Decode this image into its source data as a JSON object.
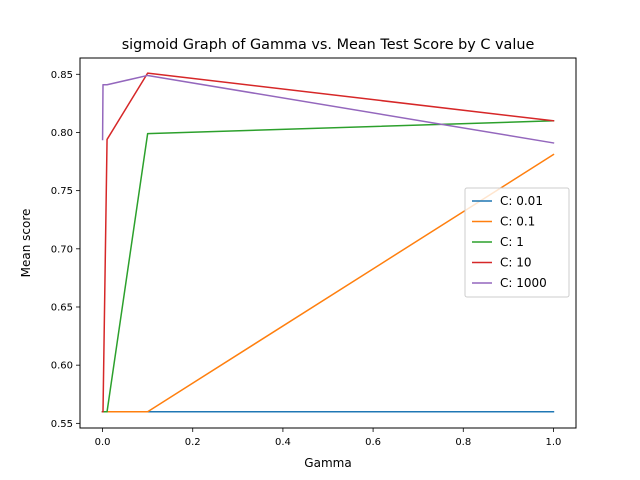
{
  "chart_data": {
    "type": "line",
    "title": "sigmoid Graph of Gamma vs. Mean Test Score by C value",
    "xlabel": "Gamma",
    "ylabel": "Mean score",
    "xlim": [
      -0.05,
      1.05
    ],
    "ylim": [
      0.546,
      0.864
    ],
    "x_ticks": [
      0.0,
      0.2,
      0.4,
      0.6,
      0.8,
      1.0
    ],
    "x_tick_labels": [
      "0.0",
      "0.2",
      "0.4",
      "0.6",
      "0.8",
      "1.0"
    ],
    "y_ticks": [
      0.55,
      0.6,
      0.65,
      0.7,
      0.75,
      0.8,
      0.85
    ],
    "y_tick_labels": [
      "0.55",
      "0.60",
      "0.65",
      "0.70",
      "0.75",
      "0.80",
      "0.85"
    ],
    "grid": false,
    "legend_position": "center-right",
    "series": [
      {
        "name": "C: 0.01",
        "color": "#1f77b4",
        "x": [
          0.0001,
          0.001,
          0.01,
          0.1,
          1.0
        ],
        "y": [
          0.56,
          0.56,
          0.56,
          0.56,
          0.56
        ]
      },
      {
        "name": "C: 0.1",
        "color": "#ff7f0e",
        "x": [
          0.0001,
          0.001,
          0.01,
          0.1,
          1.0
        ],
        "y": [
          0.56,
          0.56,
          0.56,
          0.56,
          0.781
        ]
      },
      {
        "name": "C: 1",
        "color": "#2ca02c",
        "x": [
          0.0001,
          0.001,
          0.01,
          0.1,
          1.0
        ],
        "y": [
          0.56,
          0.56,
          0.56,
          0.799,
          0.81
        ]
      },
      {
        "name": "C: 10",
        "color": "#d62728",
        "x": [
          0.0001,
          0.001,
          0.01,
          0.1,
          1.0
        ],
        "y": [
          0.56,
          0.56,
          0.794,
          0.851,
          0.81
        ]
      },
      {
        "name": "C: 1000",
        "color": "#9467bd",
        "x": [
          0.0001,
          0.001,
          0.01,
          0.1,
          1.0
        ],
        "y": [
          0.794,
          0.841,
          0.841,
          0.849,
          0.791
        ]
      }
    ]
  }
}
